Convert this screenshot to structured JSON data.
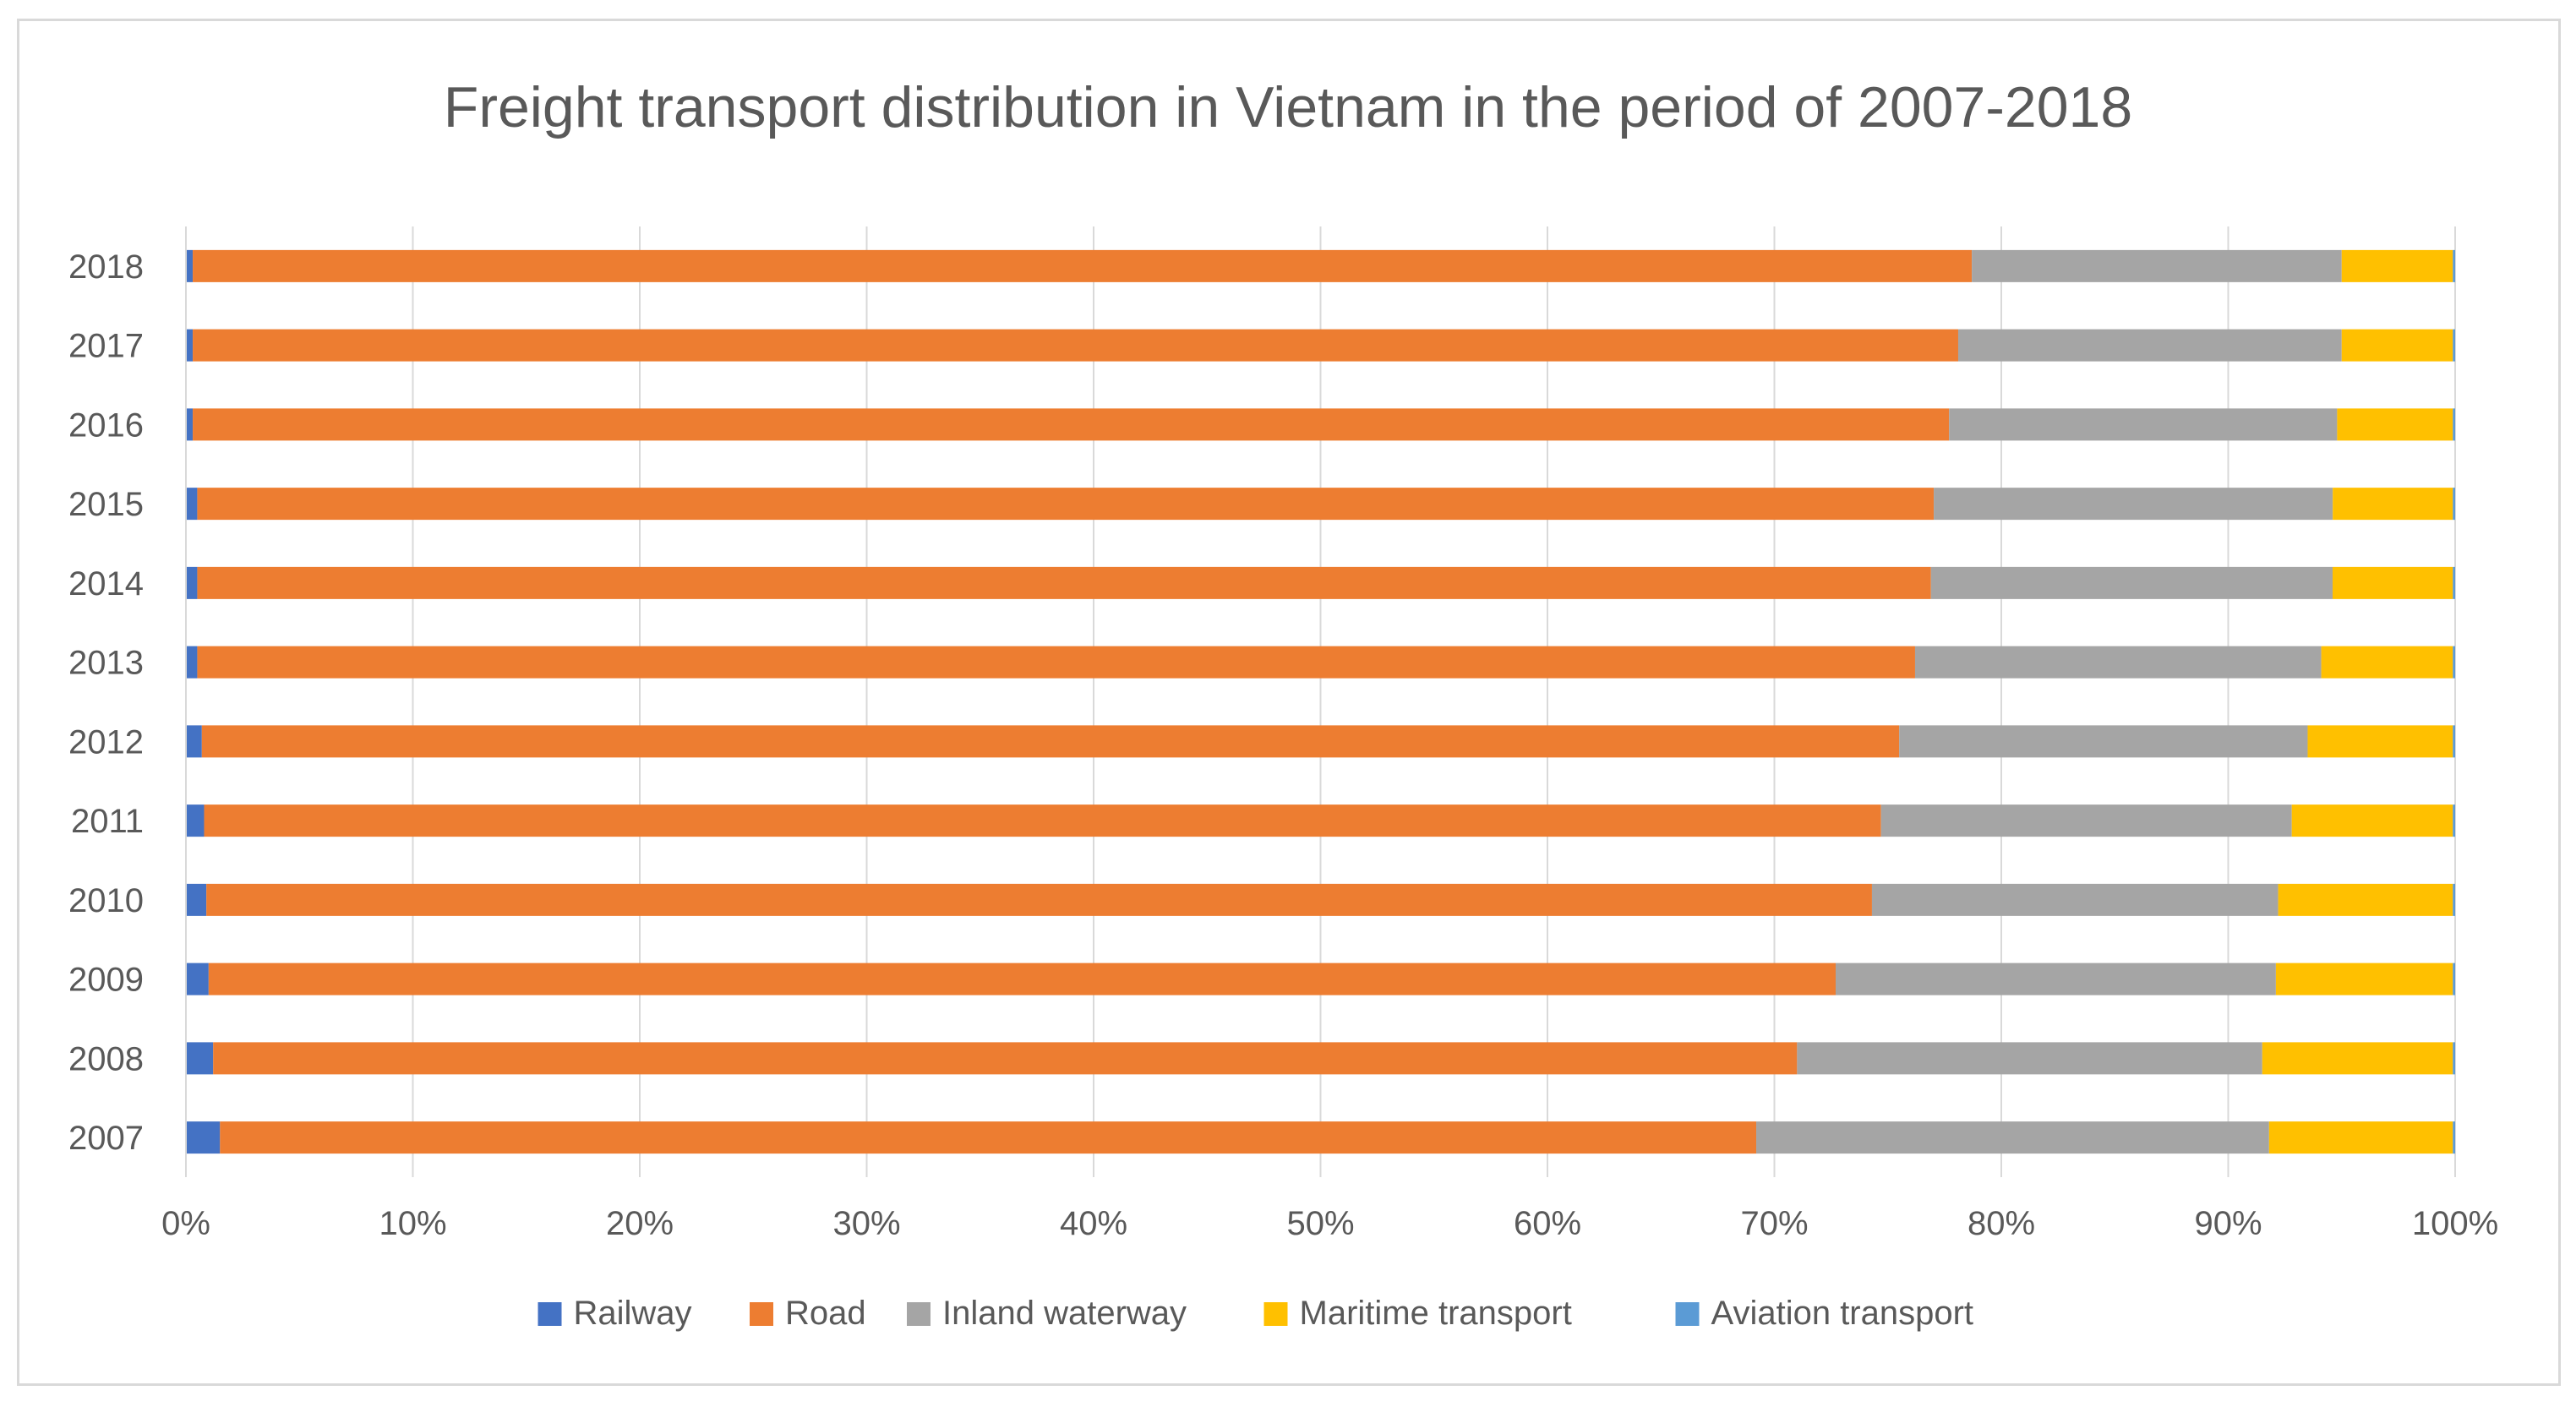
{
  "chart_data": {
    "type": "bar",
    "orientation": "horizontal",
    "stacked": "percent",
    "title": "Freight transport distribution in Vietnam in the period of 2007-2018",
    "xlabel": "",
    "ylabel": "",
    "xlim": [
      0,
      100
    ],
    "grid": true,
    "legend_position": "bottom",
    "categories": [
      "2018",
      "2017",
      "2016",
      "2015",
      "2014",
      "2013",
      "2012",
      "2011",
      "2010",
      "2009",
      "2008",
      "2007"
    ],
    "x_ticks": [
      "0%",
      "10%",
      "20%",
      "30%",
      "40%",
      "50%",
      "60%",
      "70%",
      "80%",
      "90%",
      "100%"
    ],
    "series": [
      {
        "name": "Railway",
        "color": "#4472c4",
        "values": [
          0.3,
          0.3,
          0.3,
          0.5,
          0.5,
          0.5,
          0.7,
          0.8,
          0.9,
          1.0,
          1.2,
          1.5
        ]
      },
      {
        "name": "Road",
        "color": "#ed7d31",
        "values": [
          78.4,
          77.8,
          77.4,
          76.6,
          76.4,
          75.7,
          74.8,
          73.9,
          73.4,
          71.7,
          69.8,
          67.7
        ]
      },
      {
        "name": "Inland waterway",
        "color": "#a5a5a5",
        "values": [
          16.3,
          16.9,
          17.1,
          17.6,
          17.7,
          17.9,
          18.0,
          18.1,
          17.9,
          19.4,
          20.5,
          22.6
        ]
      },
      {
        "name": "Maritime transport",
        "color": "#ffc000",
        "values": [
          4.9,
          4.9,
          5.1,
          5.3,
          5.3,
          5.8,
          6.4,
          7.1,
          7.7,
          7.8,
          8.4,
          8.1
        ]
      },
      {
        "name": "Aviation transport",
        "color": "#5b9bd5",
        "values": [
          0.1,
          0.1,
          0.1,
          0.1,
          0.1,
          0.1,
          0.1,
          0.1,
          0.1,
          0.1,
          0.1,
          0.1
        ]
      }
    ]
  }
}
